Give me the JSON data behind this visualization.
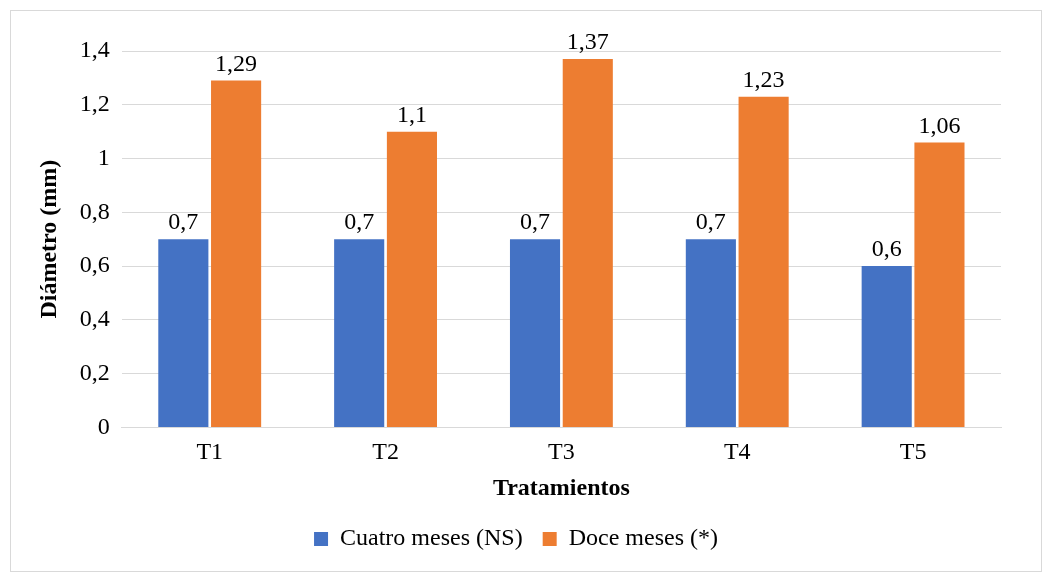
{
  "chart_data": {
    "type": "bar",
    "xlabel": "Tratamientos",
    "ylabel": "Diámetro (mm)",
    "categories": [
      "T1",
      "T2",
      "T3",
      "T4",
      "T5"
    ],
    "series": [
      {
        "name": "Cuatro meses (NS)",
        "color": "#4472c4",
        "values": [
          0.7,
          0.7,
          0.7,
          0.7,
          0.6
        ],
        "value_labels": [
          "0,7",
          "0,7",
          "0,7",
          "0,7",
          "0,6"
        ]
      },
      {
        "name": "Doce meses (*)",
        "color": "#ed7d31",
        "values": [
          1.29,
          1.1,
          1.37,
          1.23,
          1.06
        ],
        "value_labels": [
          "1,29",
          "1,1",
          "1,37",
          "1,23",
          "1,06"
        ]
      }
    ],
    "ylim": [
      0,
      1.4
    ],
    "yticks": [
      0,
      {
        "value": 0.2,
        "label": "0,2"
      },
      {
        "value": 0.4,
        "label": "0,4"
      },
      {
        "value": 0.6,
        "label": "0,6"
      },
      {
        "value": 0.8,
        "label": "0,8"
      },
      1,
      {
        "value": 1.2,
        "label": "1,2"
      },
      {
        "value": 1.4,
        "label": "1,4"
      }
    ],
    "grid": "y",
    "legend": "bottom"
  }
}
